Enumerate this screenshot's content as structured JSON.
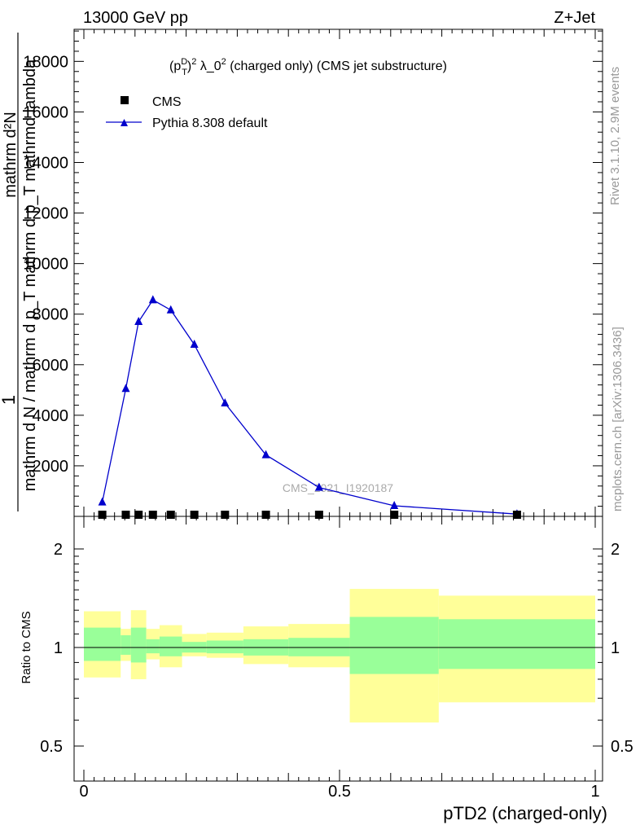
{
  "header": {
    "left": "13000 GeV pp",
    "right": "Z+Jet"
  },
  "side_labels": {
    "rivet": "Rivet 3.1.10,  2.9M events",
    "mcplots": "mcplots.cern.ch [arXiv:1306.3436]"
  },
  "chart_data": [
    {
      "type": "line",
      "panel": "main",
      "title": "(p_T^D)^2 λ_0^2 (charged only) (CMS jet substructure)",
      "title_parts": {
        "p": "(p",
        "sup": "D",
        "sub": "T",
        "close": ")",
        "exp": "2",
        "mid": " λ_0",
        "rest": " (charged only) (CMS jet substructure)"
      },
      "ylabel_fraction_num": "1",
      "ylabel_main": "mathrm d N / mathrm d p_T mathrm d p_T mathrmd lambda",
      "ylabel_denominator": "mathrm d N / mathrm d p_T mathrm d p_T mathrmd lambda",
      "ylabel_numerator": "mathrm d²N",
      "watermark": "CMS_2021_I1920187",
      "x": [
        0.036,
        0.082,
        0.107,
        0.135,
        0.17,
        0.216,
        0.276,
        0.356,
        0.46,
        0.607,
        0.847
      ],
      "xlim": [
        -0.02,
        1.02
      ],
      "ylim": [
        0,
        19300
      ],
      "yticks": [
        2000,
        4000,
        6000,
        8000,
        10000,
        12000,
        14000,
        16000,
        18000
      ],
      "ytick_labels": [
        "2000",
        "4000",
        "6000",
        "8000",
        "10000",
        "12000",
        "14000",
        "16000",
        "18000"
      ],
      "series": [
        {
          "name": "CMS",
          "marker": "square",
          "color": "#000000",
          "values": [
            0,
            0,
            0,
            0,
            0,
            0,
            0,
            0,
            0,
            0,
            0
          ]
        },
        {
          "name": "Pythia 8.308 default",
          "marker": "triangle",
          "color": "#0000cc",
          "values": [
            560,
            5050,
            7700,
            8560,
            8160,
            6800,
            4480,
            2430,
            1140,
            420,
            90
          ]
        }
      ],
      "legend": "top-left"
    },
    {
      "type": "area",
      "panel": "ratio",
      "ylabel": "Ratio to CMS",
      "xlabel": "pTD2 (charged-only)",
      "xticks": [
        0,
        0.5,
        1
      ],
      "xtick_labels": [
        "0",
        "0.5",
        "1"
      ],
      "yticks": [
        0.5,
        1,
        2
      ],
      "ytick_labels": [
        "0.5",
        "1",
        "2"
      ],
      "ylim": [
        0.4,
        2.3
      ],
      "scale": "log",
      "bins": [
        {
          "lo": 0.0,
          "hi": 0.072,
          "inner": [
            0.91,
            1.15
          ],
          "outer": [
            0.81,
            1.29
          ]
        },
        {
          "lo": 0.072,
          "hi": 0.092,
          "inner": [
            0.95,
            1.09
          ],
          "outer": [
            0.91,
            1.14
          ]
        },
        {
          "lo": 0.092,
          "hi": 0.122,
          "inner": [
            0.9,
            1.15
          ],
          "outer": [
            0.8,
            1.3
          ]
        },
        {
          "lo": 0.122,
          "hi": 0.148,
          "inner": [
            0.96,
            1.06
          ],
          "outer": [
            0.92,
            1.14
          ]
        },
        {
          "lo": 0.148,
          "hi": 0.192,
          "inner": [
            0.94,
            1.08
          ],
          "outer": [
            0.87,
            1.17
          ]
        },
        {
          "lo": 0.192,
          "hi": 0.24,
          "inner": [
            0.965,
            1.04
          ],
          "outer": [
            0.94,
            1.1
          ]
        },
        {
          "lo": 0.24,
          "hi": 0.312,
          "inner": [
            0.96,
            1.05
          ],
          "outer": [
            0.93,
            1.11
          ]
        },
        {
          "lo": 0.312,
          "hi": 0.4,
          "inner": [
            0.945,
            1.06
          ],
          "outer": [
            0.89,
            1.16
          ]
        },
        {
          "lo": 0.4,
          "hi": 0.52,
          "inner": [
            0.94,
            1.07
          ],
          "outer": [
            0.87,
            1.18
          ]
        },
        {
          "lo": 0.52,
          "hi": 0.694,
          "inner": [
            0.83,
            1.24
          ],
          "outer": [
            0.59,
            1.51
          ]
        },
        {
          "lo": 0.694,
          "hi": 1.0,
          "inner": [
            0.86,
            1.22
          ],
          "outer": [
            0.68,
            1.44
          ]
        }
      ],
      "band_colors": {
        "inner": "#99ff99",
        "outer": "#ffff99"
      },
      "reference": 1
    }
  ]
}
